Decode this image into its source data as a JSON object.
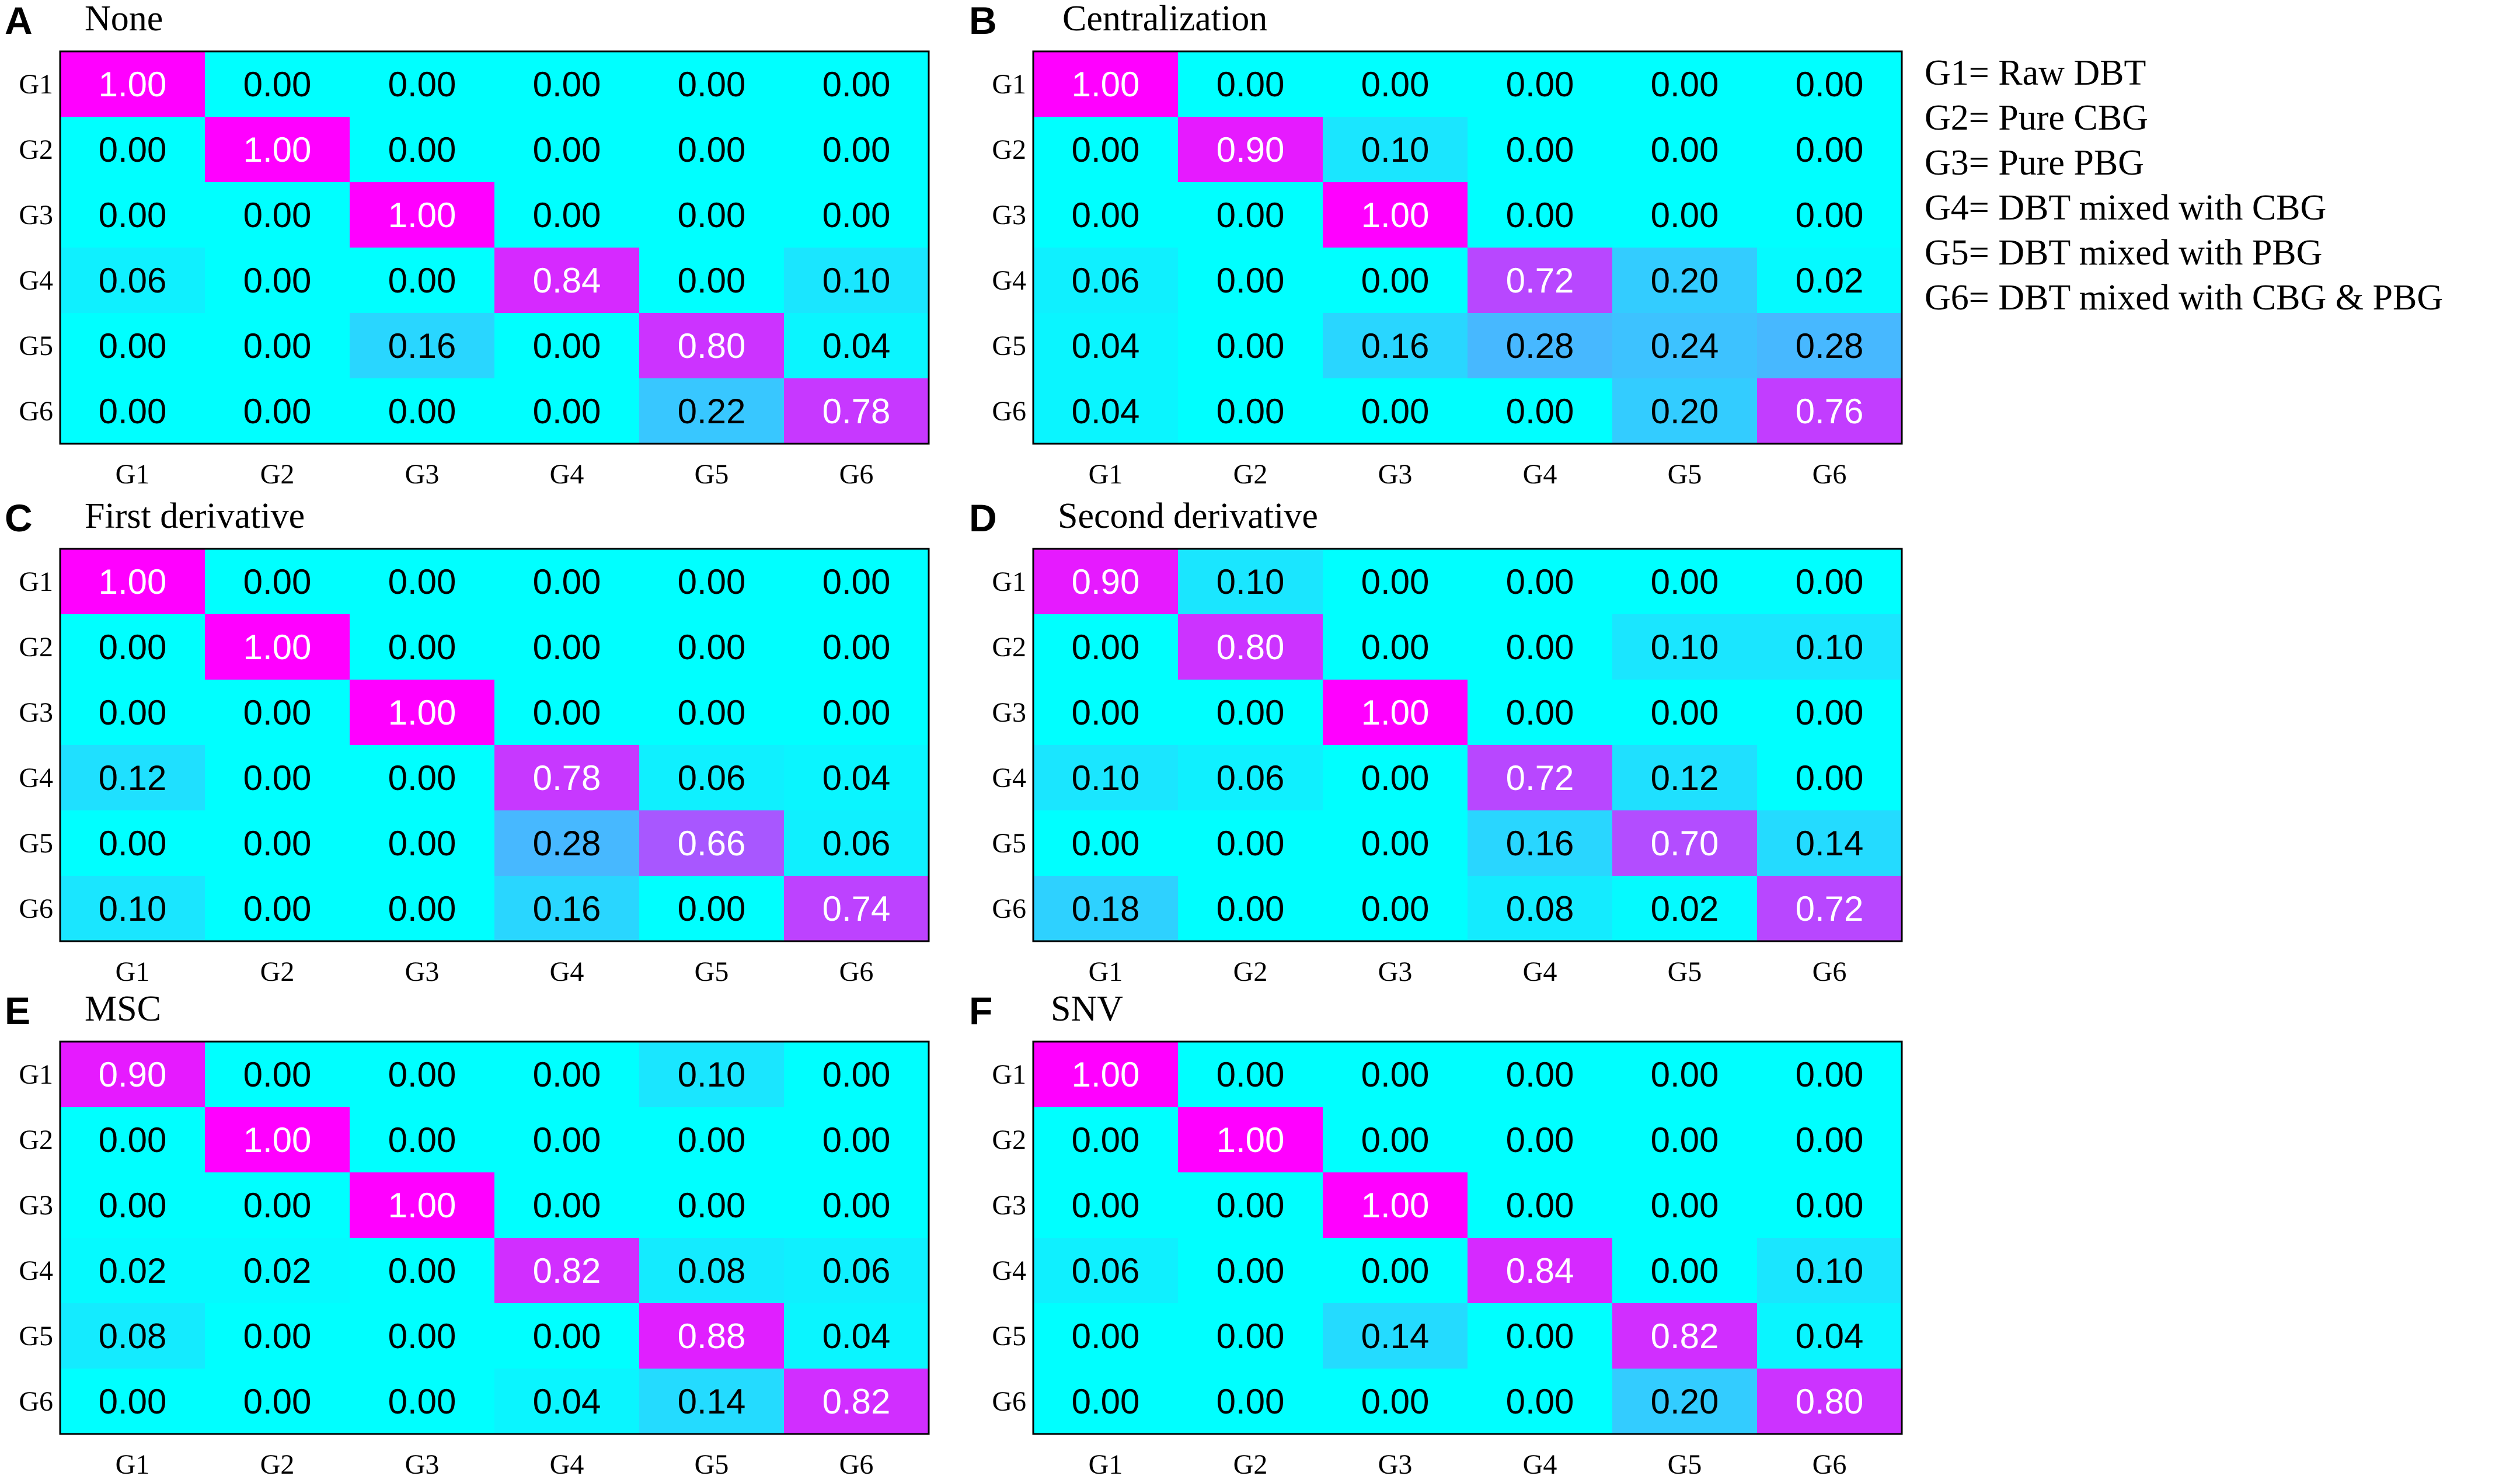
{
  "legend": [
    "G1= Raw DBT",
    "G2= Pure CBG",
    "G3= Pure PBG",
    "G4= DBT mixed with CBG",
    "G5= DBT mixed with PBG",
    "G6= DBT mixed with CBG & PBG"
  ],
  "colors": {
    "low": "#00ffff",
    "high": "#ff00ff",
    "grid_border": "#000000",
    "text_dark": "#000000",
    "text_light": "#ffffff"
  },
  "chart_data": [
    {
      "type": "heatmap",
      "panel": "A",
      "title": "None",
      "rows": [
        "G1",
        "G2",
        "G3",
        "G4",
        "G5",
        "G6"
      ],
      "cols": [
        "G1",
        "G2",
        "G3",
        "G4",
        "G5",
        "G6"
      ],
      "values": [
        [
          "1.00",
          "0.00",
          "0.00",
          "0.00",
          "0.00",
          "0.00"
        ],
        [
          "0.00",
          "1.00",
          "0.00",
          "0.00",
          "0.00",
          "0.00"
        ],
        [
          "0.00",
          "0.00",
          "1.00",
          "0.00",
          "0.00",
          "0.00"
        ],
        [
          "0.06",
          "0.00",
          "0.00",
          "0.84",
          "0.00",
          "0.10"
        ],
        [
          "0.00",
          "0.00",
          "0.16",
          "0.00",
          "0.80",
          "0.04"
        ],
        [
          "0.00",
          "0.00",
          "0.00",
          "0.00",
          "0.22",
          "0.78"
        ]
      ]
    },
    {
      "type": "heatmap",
      "panel": "B",
      "title": "Centralization",
      "rows": [
        "G1",
        "G2",
        "G3",
        "G4",
        "G5",
        "G6"
      ],
      "cols": [
        "G1",
        "G2",
        "G3",
        "G4",
        "G5",
        "G6"
      ],
      "values": [
        [
          "1.00",
          "0.00",
          "0.00",
          "0.00",
          "0.00",
          "0.00"
        ],
        [
          "0.00",
          "0.90",
          "0.10",
          "0.00",
          "0.00",
          "0.00"
        ],
        [
          "0.00",
          "0.00",
          "1.00",
          "0.00",
          "0.00",
          "0.00"
        ],
        [
          "0.06",
          "0.00",
          "0.00",
          "0.72",
          "0.20",
          "0.02"
        ],
        [
          "0.04",
          "0.00",
          "0.16",
          "0.28",
          "0.24",
          "0.28"
        ],
        [
          "0.04",
          "0.00",
          "0.00",
          "0.00",
          "0.20",
          "0.76"
        ]
      ]
    },
    {
      "type": "heatmap",
      "panel": "C",
      "title": "First derivative",
      "rows": [
        "G1",
        "G2",
        "G3",
        "G4",
        "G5",
        "G6"
      ],
      "cols": [
        "G1",
        "G2",
        "G3",
        "G4",
        "G5",
        "G6"
      ],
      "values": [
        [
          "1.00",
          "0.00",
          "0.00",
          "0.00",
          "0.00",
          "0.00"
        ],
        [
          "0.00",
          "1.00",
          "0.00",
          "0.00",
          "0.00",
          "0.00"
        ],
        [
          "0.00",
          "0.00",
          "1.00",
          "0.00",
          "0.00",
          "0.00"
        ],
        [
          "0.12",
          "0.00",
          "0.00",
          "0.78",
          "0.06",
          "0.04"
        ],
        [
          "0.00",
          "0.00",
          "0.00",
          "0.28",
          "0.66",
          "0.06"
        ],
        [
          "0.10",
          "0.00",
          "0.00",
          "0.16",
          "0.00",
          "0.74"
        ]
      ]
    },
    {
      "type": "heatmap",
      "panel": "D",
      "title": "Second derivative",
      "rows": [
        "G1",
        "G2",
        "G3",
        "G4",
        "G5",
        "G6"
      ],
      "cols": [
        "G1",
        "G2",
        "G3",
        "G4",
        "G5",
        "G6"
      ],
      "values": [
        [
          "0.90",
          "0.10",
          "0.00",
          "0.00",
          "0.00",
          "0.00"
        ],
        [
          "0.00",
          "0.80",
          "0.00",
          "0.00",
          "0.10",
          "0.10"
        ],
        [
          "0.00",
          "0.00",
          "1.00",
          "0.00",
          "0.00",
          "0.00"
        ],
        [
          "0.10",
          "0.06",
          "0.00",
          "0.72",
          "0.12",
          "0.00"
        ],
        [
          "0.00",
          "0.00",
          "0.00",
          "0.16",
          "0.70",
          "0.14"
        ],
        [
          "0.18",
          "0.00",
          "0.00",
          "0.08",
          "0.02",
          "0.72"
        ]
      ]
    },
    {
      "type": "heatmap",
      "panel": "E",
      "title": "MSC",
      "rows": [
        "G1",
        "G2",
        "G3",
        "G4",
        "G5",
        "G6"
      ],
      "cols": [
        "G1",
        "G2",
        "G3",
        "G4",
        "G5",
        "G6"
      ],
      "values": [
        [
          "0.90",
          "0.00",
          "0.00",
          "0.00",
          "0.10",
          "0.00"
        ],
        [
          "0.00",
          "1.00",
          "0.00",
          "0.00",
          "0.00",
          "0.00"
        ],
        [
          "0.00",
          "0.00",
          "1.00",
          "0.00",
          "0.00",
          "0.00"
        ],
        [
          "0.02",
          "0.02",
          "0.00",
          "0.82",
          "0.08",
          "0.06"
        ],
        [
          "0.08",
          "0.00",
          "0.00",
          "0.00",
          "0.88",
          "0.04"
        ],
        [
          "0.00",
          "0.00",
          "0.00",
          "0.04",
          "0.14",
          "0.82"
        ]
      ]
    },
    {
      "type": "heatmap",
      "panel": "F",
      "title": "SNV",
      "rows": [
        "G1",
        "G2",
        "G3",
        "G4",
        "G5",
        "G6"
      ],
      "cols": [
        "G1",
        "G2",
        "G3",
        "G4",
        "G5",
        "G6"
      ],
      "values": [
        [
          "1.00",
          "0.00",
          "0.00",
          "0.00",
          "0.00",
          "0.00"
        ],
        [
          "0.00",
          "1.00",
          "0.00",
          "0.00",
          "0.00",
          "0.00"
        ],
        [
          "0.00",
          "0.00",
          "1.00",
          "0.00",
          "0.00",
          "0.00"
        ],
        [
          "0.06",
          "0.00",
          "0.00",
          "0.84",
          "0.00",
          "0.10"
        ],
        [
          "0.00",
          "0.00",
          "0.14",
          "0.00",
          "0.82",
          "0.04"
        ],
        [
          "0.00",
          "0.00",
          "0.00",
          "0.00",
          "0.20",
          "0.80"
        ]
      ]
    }
  ]
}
